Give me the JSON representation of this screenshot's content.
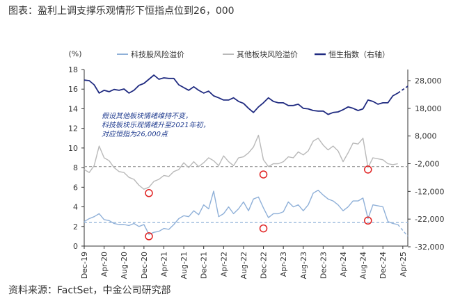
{
  "page": {
    "title": "图表：盈利上调支撑乐观情形下恒指点位到26，000",
    "source": "资料来源：FactSet，中金公司研究部"
  },
  "chart_data": {
    "type": "line",
    "left_axis": {
      "unit_label": "(%)",
      "range": [
        0,
        18
      ],
      "ticks": [
        0,
        2,
        4,
        6,
        8,
        10,
        12,
        14,
        16,
        18
      ]
    },
    "right_axis": {
      "range": [
        -32000,
        32000
      ],
      "ticks": [
        28000,
        18000,
        8000,
        -2000,
        -12000,
        -22000,
        -32000
      ],
      "tick_labels": [
        "28,000",
        "18,000",
        "8,000",
        "-2,000",
        "-12,000",
        "-22,000",
        "-32,000"
      ]
    },
    "x_axis": {
      "range": [
        "2019-12",
        "2025-05"
      ],
      "tick_dates": [
        "2019-12",
        "2020-04",
        "2020-08",
        "2020-12",
        "2021-04",
        "2021-08",
        "2021-12",
        "2022-04",
        "2022-08",
        "2022-12",
        "2023-04",
        "2023-08",
        "2023-12",
        "2024-04",
        "2024-08",
        "2024-12",
        "2025-04"
      ],
      "tick_labels": [
        "Dec-19",
        "Apr-20",
        "Aug-20",
        "Dec-20",
        "Apr-21",
        "Aug-21",
        "Dec-21",
        "Apr-22",
        "Aug-22",
        "Dec-22",
        "Apr-23",
        "Aug-23",
        "Dec-23",
        "Apr-24",
        "Aug-24",
        "Dec-24",
        "Apr-25"
      ]
    },
    "legend": {
      "placement": "top"
    },
    "series": [
      {
        "name": "科技股风险溢价",
        "axis": "left",
        "color": "#8fb0d8",
        "x": [
          "2019-12",
          "2020-01",
          "2020-02",
          "2020-03",
          "2020-04",
          "2020-05",
          "2020-06",
          "2020-07",
          "2020-08",
          "2020-09",
          "2020-10",
          "2020-11",
          "2020-12",
          "2021-01",
          "2021-02",
          "2021-03",
          "2021-04",
          "2021-05",
          "2021-06",
          "2021-07",
          "2021-08",
          "2021-09",
          "2021-10",
          "2021-11",
          "2021-12",
          "2022-01",
          "2022-02",
          "2022-03",
          "2022-04",
          "2022-05",
          "2022-06",
          "2022-07",
          "2022-08",
          "2022-09",
          "2022-10",
          "2022-11",
          "2022-12",
          "2023-01",
          "2023-02",
          "2023-03",
          "2023-04",
          "2023-05",
          "2023-06",
          "2023-07",
          "2023-08",
          "2023-09",
          "2023-10",
          "2023-11",
          "2023-12",
          "2024-01",
          "2024-02",
          "2024-03",
          "2024-04",
          "2024-05",
          "2024-06",
          "2024-07",
          "2024-08",
          "2024-09",
          "2024-10",
          "2024-11",
          "2024-12",
          "2025-01",
          "2025-02",
          "2025-03"
        ],
        "y": [
          2.5,
          2.8,
          3.0,
          3.3,
          2.7,
          2.6,
          2.3,
          2.2,
          2.2,
          2.1,
          2.3,
          2.0,
          2.2,
          1.2,
          1.4,
          1.5,
          1.8,
          1.7,
          2.2,
          2.8,
          3.1,
          3.0,
          3.6,
          3.2,
          4.2,
          3.8,
          5.6,
          3.0,
          3.3,
          4.0,
          3.3,
          3.8,
          4.5,
          3.6,
          4.8,
          5.0,
          3.9,
          2.9,
          3.3,
          3.3,
          3.5,
          4.5,
          4.0,
          4.2,
          3.6,
          4.2,
          5.4,
          5.7,
          5.2,
          4.8,
          4.6,
          4.2,
          3.6,
          4.0,
          4.6,
          4.6,
          4.9,
          2.8,
          4.2,
          4.1,
          4.0,
          2.5,
          2.3,
          2.2
        ]
      },
      {
        "name": "其他板块风险溢价",
        "axis": "left",
        "color": "#b9b9b9",
        "x": [
          "2019-12",
          "2020-01",
          "2020-02",
          "2020-03",
          "2020-04",
          "2020-05",
          "2020-06",
          "2020-07",
          "2020-08",
          "2020-09",
          "2020-10",
          "2020-11",
          "2020-12",
          "2021-01",
          "2021-02",
          "2021-03",
          "2021-04",
          "2021-05",
          "2021-06",
          "2021-07",
          "2021-08",
          "2021-09",
          "2021-10",
          "2021-11",
          "2021-12",
          "2022-01",
          "2022-02",
          "2022-03",
          "2022-04",
          "2022-05",
          "2022-06",
          "2022-07",
          "2022-08",
          "2022-09",
          "2022-10",
          "2022-11",
          "2022-12",
          "2023-01",
          "2023-02",
          "2023-03",
          "2023-04",
          "2023-05",
          "2023-06",
          "2023-07",
          "2023-08",
          "2023-09",
          "2023-10",
          "2023-11",
          "2023-12",
          "2024-01",
          "2024-02",
          "2024-03",
          "2024-04",
          "2024-05",
          "2024-06",
          "2024-07",
          "2024-08",
          "2024-09",
          "2024-10",
          "2024-11",
          "2024-12",
          "2025-01",
          "2025-02",
          "2025-03"
        ],
        "y": [
          7.8,
          7.5,
          8.2,
          10.2,
          9.0,
          8.7,
          8.0,
          7.6,
          7.5,
          7.0,
          6.8,
          6.2,
          5.8,
          6.0,
          6.6,
          6.8,
          7.2,
          7.1,
          7.6,
          7.8,
          8.5,
          8.0,
          8.6,
          8.1,
          8.5,
          9.0,
          8.7,
          8.2,
          9.2,
          8.6,
          8.2,
          9.0,
          9.1,
          9.5,
          10.1,
          11.3,
          8.8,
          8.1,
          8.4,
          8.4,
          8.6,
          9.1,
          9.0,
          9.6,
          9.3,
          9.7,
          10.7,
          11.0,
          10.3,
          9.8,
          10.2,
          9.7,
          8.6,
          9.5,
          10.5,
          10.4,
          11.0,
          8.0,
          9.0,
          8.9,
          8.8,
          8.4,
          8.3,
          8.4
        ]
      },
      {
        "name": "恒生指数（右轴）",
        "axis": "right",
        "color": "#1f2a80",
        "x": [
          "2019-12",
          "2020-01",
          "2020-02",
          "2020-03",
          "2020-04",
          "2020-05",
          "2020-06",
          "2020-07",
          "2020-08",
          "2020-09",
          "2020-10",
          "2020-11",
          "2020-12",
          "2021-01",
          "2021-02",
          "2021-03",
          "2021-04",
          "2021-05",
          "2021-06",
          "2021-07",
          "2021-08",
          "2021-09",
          "2021-10",
          "2021-11",
          "2021-12",
          "2022-01",
          "2022-02",
          "2022-03",
          "2022-04",
          "2022-05",
          "2022-06",
          "2022-07",
          "2022-08",
          "2022-09",
          "2022-10",
          "2022-11",
          "2022-12",
          "2023-01",
          "2023-02",
          "2023-03",
          "2023-04",
          "2023-05",
          "2023-06",
          "2023-07",
          "2023-08",
          "2023-09",
          "2023-10",
          "2023-11",
          "2023-12",
          "2024-01",
          "2024-02",
          "2024-03",
          "2024-04",
          "2024-05",
          "2024-06",
          "2024-07",
          "2024-08",
          "2024-09",
          "2024-10",
          "2024-11",
          "2024-12",
          "2025-01",
          "2025-02",
          "2025-03"
        ],
        "y": [
          28200,
          28000,
          26500,
          23500,
          24500,
          24000,
          24800,
          24500,
          25000,
          23500,
          24500,
          26300,
          27000,
          28500,
          30000,
          28500,
          29000,
          28800,
          28800,
          26500,
          25500,
          24500,
          25800,
          24500,
          23500,
          24200,
          22500,
          21800,
          21000,
          21000,
          21800,
          20500,
          19800,
          18000,
          16500,
          18500,
          20000,
          21800,
          20500,
          20000,
          20000,
          19000,
          19000,
          19500,
          18000,
          17800,
          17200,
          17000,
          17000,
          15800,
          16500,
          16700,
          17500,
          18500,
          18000,
          17200,
          17800,
          21000,
          20500,
          19500,
          20000,
          20000,
          22500,
          23500
        ]
      },
      {
        "name": "科技股风险溢价（假设）",
        "axis": "left",
        "color": "#8fb0d8",
        "dashed": true,
        "x": [
          "2025-03",
          "2025-05"
        ],
        "y": [
          2.2,
          1.0
        ]
      },
      {
        "name": "恒生指数（假设）",
        "axis": "right",
        "color": "#1f2a80",
        "dashed": true,
        "x": [
          "2025-03",
          "2025-05"
        ],
        "y": [
          23500,
          26000
        ]
      }
    ],
    "reference_lines": [
      {
        "axis": "left",
        "value": 8.1,
        "color": "#9a9a9a"
      },
      {
        "axis": "left",
        "value": 2.4,
        "color": "#8fb0d8"
      }
    ],
    "markers": [
      {
        "date": "2021-01",
        "value": 5.4
      },
      {
        "date": "2021-01",
        "value": 1.0
      },
      {
        "date": "2022-12",
        "value": 7.3
      },
      {
        "date": "2022-12",
        "value": 1.8
      },
      {
        "date": "2024-09",
        "value": 7.8
      },
      {
        "date": "2024-09",
        "value": 2.6
      }
    ],
    "annotation": {
      "lines": [
        "假设其他板块情绪维持不变，",
        "科技板块乐观情绪升至2021年初，",
        "对应恒指为26,000点"
      ]
    }
  }
}
